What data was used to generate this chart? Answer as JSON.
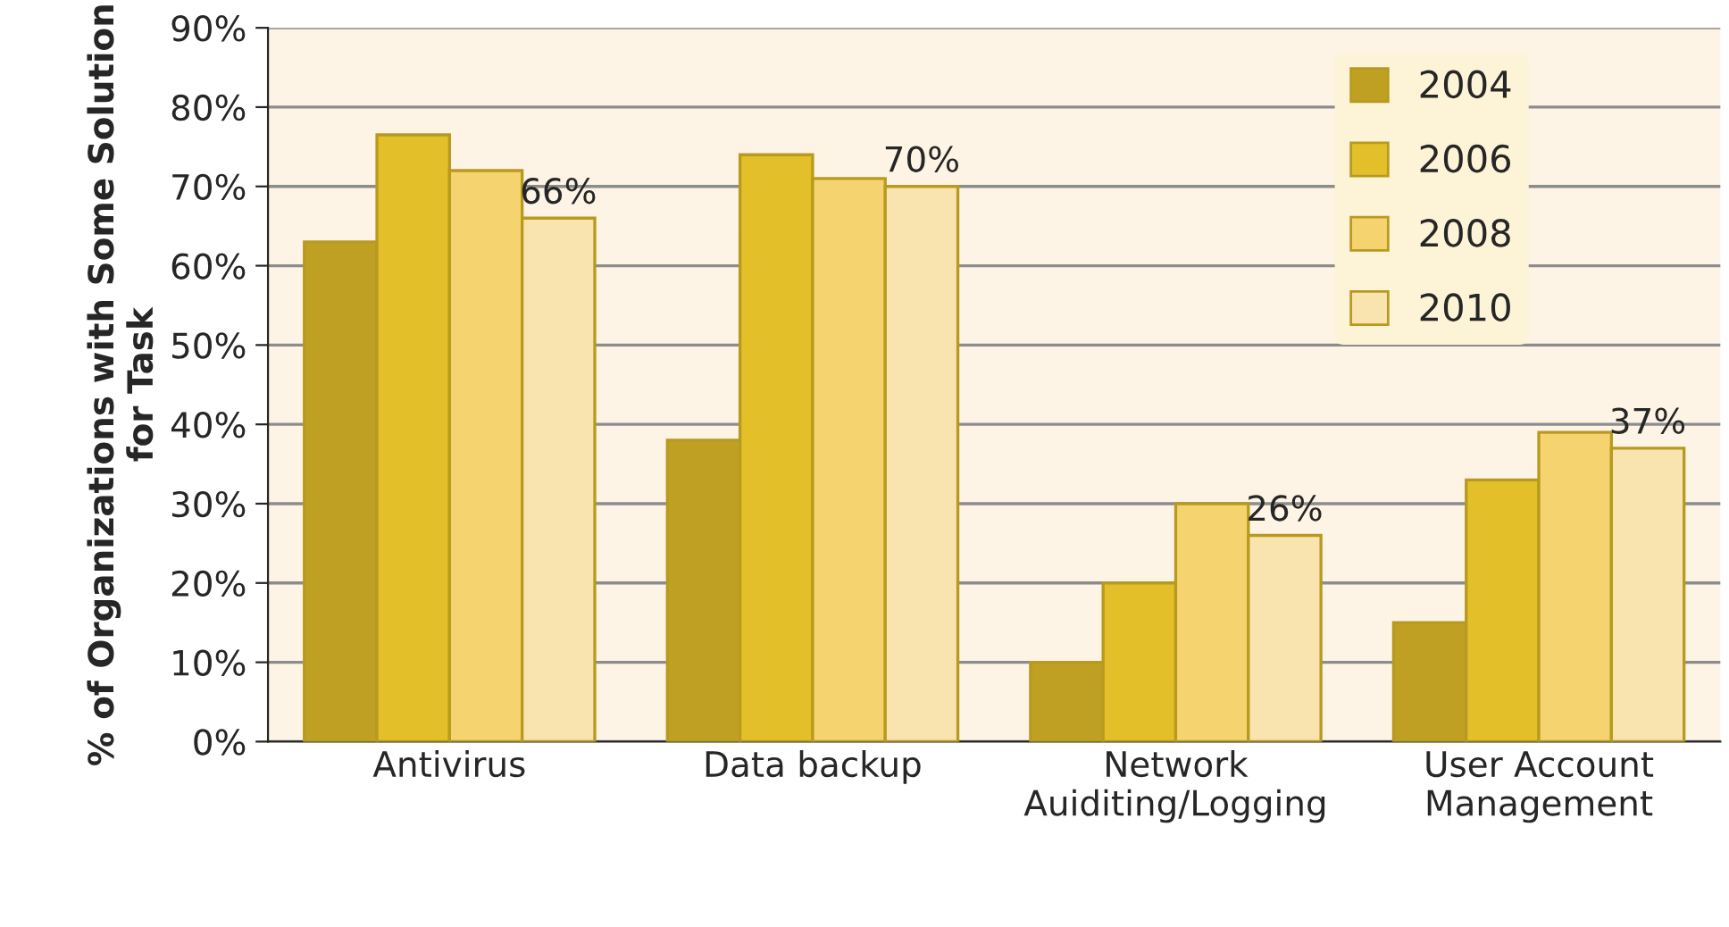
{
  "chart_data": {
    "type": "bar",
    "ylabel": "% of Organizations with Some Solution for Task",
    "categories": [
      "Antivirus",
      "Data backup",
      "Network\nAuiditing/Logging",
      "User Account\nManagement"
    ],
    "series": [
      {
        "name": "2004",
        "color": "#c0a022",
        "values": [
          63,
          38,
          10,
          15
        ]
      },
      {
        "name": "2006",
        "color": "#e3bf29",
        "values": [
          76.5,
          74,
          20,
          33
        ]
      },
      {
        "name": "2008",
        "color": "#f5d470",
        "values": [
          72,
          71,
          30,
          39
        ]
      },
      {
        "name": "2010",
        "color": "#f9e4b0",
        "values": [
          66,
          70,
          26,
          37
        ],
        "value_labels": [
          "66%",
          "70%",
          "26%",
          "37%"
        ]
      }
    ],
    "ylim": [
      0,
      90
    ],
    "yticks": [
      {
        "value": 0,
        "label": "0%"
      },
      {
        "value": 10,
        "label": "10%"
      },
      {
        "value": 20,
        "label": "20%"
      },
      {
        "value": 30,
        "label": "30%"
      },
      {
        "value": 40,
        "label": "40%"
      },
      {
        "value": 50,
        "label": "50%"
      },
      {
        "value": 60,
        "label": "60%"
      },
      {
        "value": 70,
        "label": "70%"
      },
      {
        "value": 80,
        "label": "80%"
      },
      {
        "value": 90,
        "label": "90%"
      }
    ],
    "grid": "y",
    "legend": "top right"
  }
}
